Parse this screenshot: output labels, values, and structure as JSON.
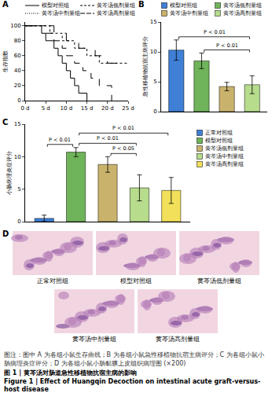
{
  "chart_data": [
    {
      "type": "line",
      "panel": "A",
      "ylabel": "生存指数",
      "xlim": [
        0,
        25
      ],
      "xticks": [
        {
          "value": 0,
          "label": "0 d"
        },
        {
          "value": 5,
          "label": "5 d"
        },
        {
          "value": 10,
          "label": "10 d"
        },
        {
          "value": 15,
          "label": "15 d"
        },
        {
          "value": 20,
          "label": "20 d"
        },
        {
          "value": 25,
          "label": "25 d"
        }
      ],
      "ylim": [
        0,
        105
      ],
      "yticks": [
        0,
        20,
        40,
        60,
        80,
        100
      ],
      "grid": false,
      "legend": "top",
      "series": [
        {
          "name": "模型对照组",
          "color": "#000000",
          "line_style": "solid",
          "x": [
            0,
            4,
            5,
            7,
            8,
            9,
            10,
            11,
            12,
            13,
            15
          ],
          "values": [
            100,
            90,
            80,
            70,
            60,
            50,
            40,
            30,
            20,
            10,
            0
          ]
        },
        {
          "name": "黄芩汤低剂量组",
          "color": "#000000",
          "line_style": "dash",
          "x": [
            0,
            5,
            7,
            9,
            10,
            12,
            14,
            16,
            18,
            21
          ],
          "values": [
            100,
            90,
            80,
            70,
            60,
            50,
            40,
            30,
            20,
            0
          ]
        },
        {
          "name": "黄芩汤中剂量组",
          "color": "#000000",
          "line_style": "dot",
          "x": [
            0,
            6,
            9,
            12,
            15,
            18,
            25
          ],
          "values": [
            100,
            90,
            80,
            70,
            60,
            50,
            50
          ]
        },
        {
          "name": "黄芩汤高剂量组",
          "color": "#000000",
          "line_style": "longdash",
          "x": [
            0,
            7,
            10,
            13,
            17,
            20,
            25
          ],
          "values": [
            100,
            90,
            80,
            70,
            60,
            50,
            50
          ]
        }
      ]
    },
    {
      "type": "bar",
      "panel": "B",
      "ylabel": "急性移植物抗宿主病评分",
      "categories": [
        "模型对照组",
        "黄芩汤低剂量组",
        "黄芩汤中剂量组",
        "黄芩汤高剂量组"
      ],
      "values": [
        10.3,
        8.5,
        4.2,
        4.5
      ],
      "errors": [
        1.7,
        1.3,
        0.7,
        1.5
      ],
      "colors": [
        "#3f7fd6",
        "#6fb35a",
        "#c9b36c",
        "#b6dc8c"
      ],
      "ylim": [
        0,
        15
      ],
      "yticks": [
        0,
        5,
        10,
        15
      ],
      "grid": false,
      "legend": "top",
      "tick_labels": "y",
      "annotations": [
        {
          "text": "P < 0.01",
          "between": [
            "黄芩汤低剂量组",
            "黄芩汤高剂量组"
          ]
        },
        {
          "text": "P < 0.01",
          "between": [
            "模型对照组",
            "黄芩汤高剂量组"
          ]
        }
      ]
    },
    {
      "type": "bar",
      "panel": "C",
      "ylabel": "小肠病理炎症评分",
      "categories": [
        "正常对照组",
        "模型对照组",
        "黄芩汤低剂量组",
        "黄芩汤中剂量组",
        "黄芩汤高剂量组"
      ],
      "values": [
        0.5,
        10.7,
        8.8,
        5.2,
        4.8
      ],
      "errors": [
        0.5,
        0.7,
        1.2,
        2.0,
        2.0
      ],
      "colors": [
        "#3f7fd6",
        "#6fb35a",
        "#c9b36c",
        "#b6dc8c",
        "#f2e05a"
      ],
      "ylim": [
        0,
        15
      ],
      "yticks": [
        0,
        5,
        10,
        15
      ],
      "grid": false,
      "legend": "right",
      "tick_labels": "y",
      "annotations": [
        {
          "text": "P < 0.05",
          "between": [
            "黄芩汤低剂量组",
            "黄芩汤中剂量组"
          ]
        },
        {
          "text": "P < 0.01",
          "between": [
            "正常对照组",
            "模型对照组"
          ]
        },
        {
          "text": "P < 0.01",
          "between": [
            "模型对照组",
            "黄芩汤中剂量组"
          ]
        },
        {
          "text": "P < 0.01",
          "between": [
            "模型对照组",
            "黄芩汤高剂量组"
          ]
        }
      ]
    }
  ],
  "panel_d": {
    "panel": "D",
    "labels": [
      "正常对照组",
      "模型对照组",
      "黄芩汤低剂量组",
      "黄芩汤中剂量组",
      "黄芩汤高剂量组"
    ]
  },
  "caption": {
    "note": "图注：图中 A 为各组小鼠生存曲线；B 为各组小鼠急性移植物抗宿主病评分；C 为各组小鼠小肠病理炎症评分；D 为各组小鼠小肠黏膜上皮组织病理图 (×200)",
    "title_zh": "图 1 | 黄芩汤对肠道急性移植物抗宿主病的影响",
    "title_en": "Figure 1 | Effect of Huangqin Decoction on intestinal acute graft-versus-host disease"
  }
}
